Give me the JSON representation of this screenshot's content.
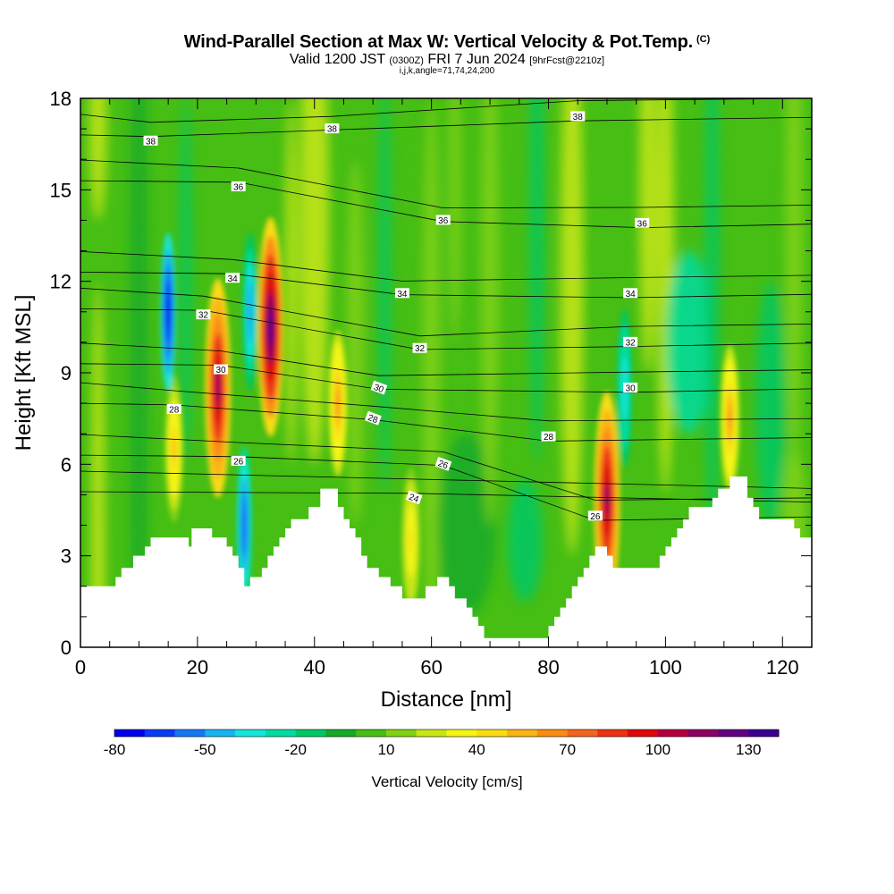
{
  "header": {
    "title": "Wind-Parallel Section at Max W: Vertical Velocity & Pot.Temp.",
    "title_mark": "(C)",
    "subtitle_valid": "Valid 1200 JST",
    "subtitle_utc": "(0300Z)",
    "subtitle_date": "FRI 7 Jun 2024",
    "subtitle_fcst": "[9hrFcst@2210z]",
    "subsubtitle": "i,j,k,angle=71,74,24,200"
  },
  "chart_data": {
    "type": "heatmap",
    "xlabel": "Distance [nm]",
    "ylabel": "Height [Kft MSL]",
    "xlim": [
      0,
      125
    ],
    "ylim": [
      0,
      18
    ],
    "x_ticks": [
      "0",
      "20",
      "40",
      "60",
      "80",
      "100",
      "120"
    ],
    "y_ticks": [
      "0",
      "3",
      "6",
      "9",
      "12",
      "15",
      "18"
    ],
    "colorbar": {
      "label": "Vertical Velocity [cm/s]",
      "range": [
        -80,
        140
      ],
      "step": 10,
      "tick_labels": [
        "-80",
        "-50",
        "-20",
        "10",
        "40",
        "70",
        "100",
        "130"
      ],
      "colors": [
        "#0000ee",
        "#0a3cf5",
        "#1478f5",
        "#14b4f0",
        "#14e6dc",
        "#00dca0",
        "#00c864",
        "#14aa28",
        "#46be14",
        "#82d214",
        "#c8e614",
        "#f5f514",
        "#fadc14",
        "#fab414",
        "#fa8c14",
        "#f5641e",
        "#eb3214",
        "#dc0a0a",
        "#b4003c",
        "#8c0064",
        "#640082",
        "#3c0090"
      ]
    },
    "terrain_profile": {
      "x": [
        0,
        5,
        6,
        7,
        8,
        9,
        10,
        11,
        12,
        13,
        18,
        18.5,
        19,
        22,
        22.5,
        23,
        24,
        25,
        26,
        27,
        28,
        29,
        30,
        31,
        32,
        33,
        34,
        35,
        36,
        37,
        38,
        39,
        40,
        41,
        42,
        43,
        44,
        45,
        46,
        47,
        48,
        49,
        50,
        51,
        52,
        53,
        54,
        55,
        56,
        57,
        58,
        59,
        60,
        61,
        62,
        63,
        64,
        65,
        66,
        67,
        68,
        69,
        70,
        71,
        72,
        73,
        74,
        75,
        76,
        77,
        78,
        79,
        80,
        81,
        82,
        83,
        84,
        85,
        86,
        87,
        88,
        89,
        90,
        91,
        92,
        93,
        94,
        95,
        96,
        97,
        98,
        99,
        100,
        101,
        102,
        103,
        104,
        105,
        106,
        107,
        108,
        109,
        110,
        111,
        112,
        113,
        114,
        115,
        116,
        117,
        118,
        119,
        120,
        121,
        122,
        123,
        124,
        125
      ],
      "y": [
        2.0,
        2.0,
        2.3,
        2.6,
        2.6,
        3.0,
        3.0,
        3.3,
        3.6,
        3.6,
        3.6,
        3.3,
        3.9,
        3.9,
        3.6,
        3.6,
        3.6,
        3.3,
        3.0,
        2.6,
        2.0,
        2.3,
        2.3,
        2.6,
        3.0,
        3.3,
        3.6,
        3.9,
        4.2,
        4.2,
        4.2,
        4.6,
        4.6,
        5.2,
        5.2,
        5.2,
        4.6,
        4.2,
        3.9,
        3.6,
        3.0,
        2.6,
        2.6,
        2.3,
        2.3,
        2.0,
        2.0,
        1.6,
        1.6,
        1.6,
        1.6,
        2.0,
        2.0,
        2.3,
        2.3,
        2.0,
        1.6,
        1.6,
        1.3,
        1.0,
        0.7,
        0.3,
        0.3,
        0.3,
        0.3,
        0.3,
        0.3,
        0.3,
        0.3,
        0.3,
        0.3,
        0.3,
        0.7,
        1.0,
        1.3,
        1.6,
        2.0,
        2.3,
        2.6,
        3.0,
        3.3,
        3.3,
        3.0,
        2.6,
        2.6,
        2.6,
        2.6,
        2.6,
        2.6,
        2.6,
        2.6,
        3.0,
        3.3,
        3.6,
        3.9,
        4.2,
        4.6,
        4.6,
        4.6,
        4.6,
        4.9,
        5.2,
        5.2,
        5.6,
        5.6,
        5.6,
        4.9,
        4.6,
        4.2,
        4.2,
        4.2,
        4.2,
        4.2,
        4.2,
        3.9,
        3.6,
        3.6,
        3.6
      ],
      "fill": "#ffffff"
    },
    "isentropes": [
      {
        "label": "24",
        "label_at": [
          57,
          4.9
        ]
      },
      {
        "label": "26",
        "label_at": [
          27,
          6.1
        ]
      },
      {
        "label": "26",
        "label_at": [
          62,
          6.0
        ]
      },
      {
        "label": "26",
        "label_at": [
          88,
          4.3
        ]
      },
      {
        "label": "28",
        "label_at": [
          16,
          7.8
        ]
      },
      {
        "label": "28",
        "label_at": [
          50,
          7.5
        ]
      },
      {
        "label": "28",
        "label_at": [
          80,
          6.9
        ]
      },
      {
        "label": "30",
        "label_at": [
          24,
          9.1
        ]
      },
      {
        "label": "30",
        "label_at": [
          51,
          8.5
        ]
      },
      {
        "label": "30",
        "label_at": [
          94,
          8.5
        ]
      },
      {
        "label": "32",
        "label_at": [
          21,
          10.9
        ]
      },
      {
        "label": "32",
        "label_at": [
          58,
          9.8
        ]
      },
      {
        "label": "32",
        "label_at": [
          94,
          10.0
        ]
      },
      {
        "label": "34",
        "label_at": [
          26,
          12.1
        ]
      },
      {
        "label": "34",
        "label_at": [
          55,
          11.6
        ]
      },
      {
        "label": "34",
        "label_at": [
          94,
          11.6
        ]
      },
      {
        "label": "36",
        "label_at": [
          27,
          15.1
        ]
      },
      {
        "label": "36",
        "label_at": [
          62,
          14.0
        ]
      },
      {
        "label": "36",
        "label_at": [
          96,
          13.9
        ]
      },
      {
        "label": "38",
        "label_at": [
          12,
          16.6
        ]
      },
      {
        "label": "38",
        "label_at": [
          43,
          17.0
        ]
      },
      {
        "label": "38",
        "label_at": [
          85,
          17.4
        ]
      }
    ],
    "updraft_cores": [
      {
        "x": 23.5,
        "y": 8.5,
        "value": 110
      },
      {
        "x": 32.5,
        "y": 10.5,
        "value": 130
      },
      {
        "x": 44.0,
        "y": 8.0,
        "value": 60
      },
      {
        "x": 16.0,
        "y": 6.5,
        "value": 50
      },
      {
        "x": 90.0,
        "y": 4.8,
        "value": 110
      },
      {
        "x": 111.0,
        "y": 7.5,
        "value": 60
      },
      {
        "x": 56.5,
        "y": 3.5,
        "value": 40
      }
    ],
    "downdraft_cores": [
      {
        "x": 15.0,
        "y": 11.0,
        "value": -80
      },
      {
        "x": 28.0,
        "y": 4.0,
        "value": -60
      },
      {
        "x": 29.0,
        "y": 11.0,
        "value": -50
      },
      {
        "x": 93.0,
        "y": 8.5,
        "value": -40
      }
    ]
  }
}
